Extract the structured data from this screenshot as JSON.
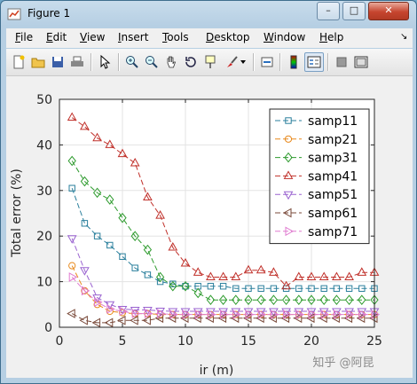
{
  "window": {
    "title": "Figure 1"
  },
  "window_controls": {
    "minimize": "–",
    "maximize": "□",
    "close": "✕"
  },
  "menu": [
    {
      "label": "File",
      "key": "F",
      "rest": "ile"
    },
    {
      "label": "Edit",
      "key": "E",
      "rest": "dit"
    },
    {
      "label": "View",
      "key": "V",
      "rest": "iew"
    },
    {
      "label": "Insert",
      "key": "I",
      "rest": "nsert"
    },
    {
      "label": "Tools",
      "key": "T",
      "rest": "ools"
    },
    {
      "label": "Desktop",
      "key": "D",
      "rest": "esktop"
    },
    {
      "label": "Window",
      "key": "W",
      "rest": "indow"
    },
    {
      "label": "Help",
      "key": "H",
      "rest": "elp"
    }
  ],
  "toolbar_icons": [
    "new-figure-icon",
    "open-file-icon",
    "save-icon",
    "print-icon",
    "edit-plot-arrow-icon",
    "zoom-in-icon",
    "zoom-out-icon",
    "pan-hand-icon",
    "rotate-3d-icon",
    "data-cursor-icon",
    "brush-icon",
    "link-plot-icon",
    "colorbar-icon",
    "legend-icon",
    "hide-plot-tools-icon",
    "show-plot-tools-icon"
  ],
  "watermark": "知乎 @阿昆",
  "colors": {
    "samp11": "#2a7f9c",
    "samp21": "#e8891c",
    "samp31": "#2e9b2e",
    "samp41": "#c0302a",
    "samp51": "#9a63d0",
    "samp61": "#7a4a3a",
    "samp71": "#e07bd0"
  },
  "chart_data": {
    "type": "line",
    "xlabel": "ir (m)",
    "ylabel": "Total error (%)",
    "xlim": [
      0,
      25
    ],
    "ylim": [
      0,
      50
    ],
    "xticks": [
      0,
      5,
      10,
      15,
      20,
      25
    ],
    "yticks": [
      0,
      10,
      20,
      30,
      40,
      50
    ],
    "grid": true,
    "legend_position": "top-right",
    "x": [
      1,
      2,
      3,
      4,
      5,
      6,
      7,
      8,
      9,
      10,
      11,
      12,
      13,
      14,
      15,
      16,
      17,
      18,
      19,
      20,
      21,
      22,
      23,
      24,
      25
    ],
    "series": [
      {
        "name": "samp11",
        "marker": "square",
        "values": [
          30.5,
          22.8,
          20,
          18,
          15.5,
          13,
          11.5,
          10,
          9.5,
          9,
          9,
          9,
          9,
          8.5,
          8.5,
          8.5,
          8.5,
          8.5,
          8.5,
          8.5,
          8.5,
          8.5,
          8.5,
          8.5,
          8.5
        ]
      },
      {
        "name": "samp21",
        "marker": "circle",
        "values": [
          13.5,
          8,
          5,
          3.5,
          3.2,
          3,
          3,
          2.8,
          2.8,
          2.8,
          2.8,
          2.8,
          2.8,
          2.8,
          2.8,
          2.8,
          2.8,
          2.8,
          2.8,
          2.8,
          2.8,
          2.8,
          2.8,
          2.8,
          2.8
        ]
      },
      {
        "name": "samp31",
        "marker": "diamond",
        "values": [
          36.5,
          32,
          29.5,
          28,
          24,
          20,
          17,
          11,
          9,
          9,
          7.5,
          6,
          6,
          6,
          6,
          6,
          6,
          6,
          6,
          6,
          6,
          6,
          6,
          6,
          6
        ]
      },
      {
        "name": "samp41",
        "marker": "triangle-up",
        "values": [
          46,
          44,
          41.5,
          40,
          38,
          36,
          28.5,
          24.5,
          17.5,
          14,
          12,
          11,
          11,
          11,
          12.5,
          12.5,
          12,
          9,
          11,
          11,
          11,
          11,
          11,
          12,
          12
        ]
      },
      {
        "name": "samp51",
        "marker": "triangle-down",
        "values": [
          19.5,
          12.5,
          6.5,
          5,
          4,
          3.8,
          3.8,
          3.6,
          3.5,
          3.5,
          3.5,
          3.5,
          3.5,
          3.5,
          3.5,
          3.5,
          3.5,
          3.5,
          3.5,
          3.5,
          3.5,
          3.5,
          3.5,
          3.5,
          3.5
        ]
      },
      {
        "name": "samp61",
        "marker": "triangle-left",
        "values": [
          3,
          1.5,
          1,
          1,
          1.5,
          1.5,
          1.5,
          2,
          2,
          2,
          2,
          2,
          2,
          2,
          2,
          2,
          2,
          2,
          2,
          2,
          2,
          2,
          2,
          2,
          2
        ]
      },
      {
        "name": "samp71",
        "marker": "triangle-right",
        "values": [
          11,
          8,
          5.5,
          4,
          3.5,
          3,
          3,
          3,
          2.8,
          2.8,
          2.8,
          2.8,
          2.8,
          2.8,
          2.8,
          2.8,
          2.8,
          2.8,
          2.8,
          2.8,
          2.8,
          2.8,
          2.8,
          2.8,
          2.8
        ]
      }
    ]
  }
}
